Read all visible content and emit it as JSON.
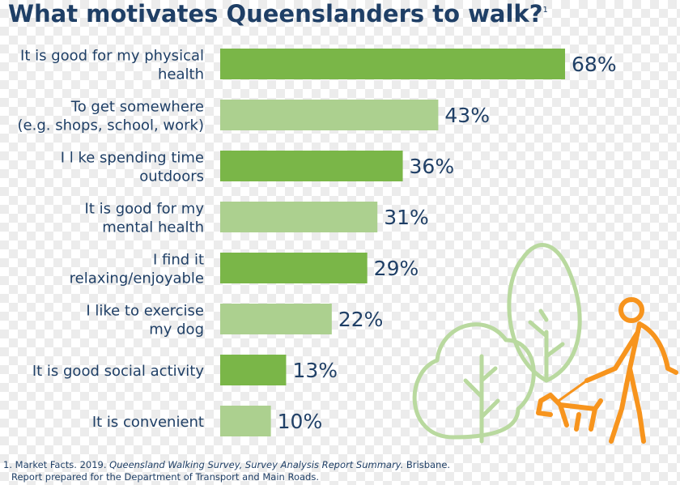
{
  "chart_data": {
    "type": "bar",
    "orientation": "horizontal",
    "title": "What motivates Queenslanders to walk?",
    "title_note": "1",
    "categories": [
      [
        "It is good for my physical",
        "health"
      ],
      [
        "To get somewhere",
        "(e.g. shops, school, work)"
      ],
      [
        "I l ke spending time",
        "outdoors"
      ],
      [
        "It is good for my",
        "mental health"
      ],
      [
        "I find it",
        "relaxing/enjoyable"
      ],
      [
        "I like to exercise",
        "my dog"
      ],
      [
        "It is good social activity"
      ],
      [
        "It is convenient"
      ]
    ],
    "values": [
      68,
      43,
      36,
      31,
      29,
      22,
      13,
      10
    ],
    "value_labels": [
      "68%",
      "43%",
      "36%",
      "31%",
      "29%",
      "22%",
      "13%",
      "10%"
    ],
    "colors": [
      "#7ab648",
      "#acd08f",
      "#7ab648",
      "#acd08f",
      "#7ab648",
      "#acd08f",
      "#7ab648",
      "#acd08f"
    ],
    "footnote": {
      "number": "1.",
      "author": "Market Facts. 2019.",
      "work": "Queensland Walking Survey, Survey Analysis Report Summary.",
      "place": "Brisbane.",
      "line2": "Report prepared for the Department of Transport and Main Roads."
    }
  }
}
